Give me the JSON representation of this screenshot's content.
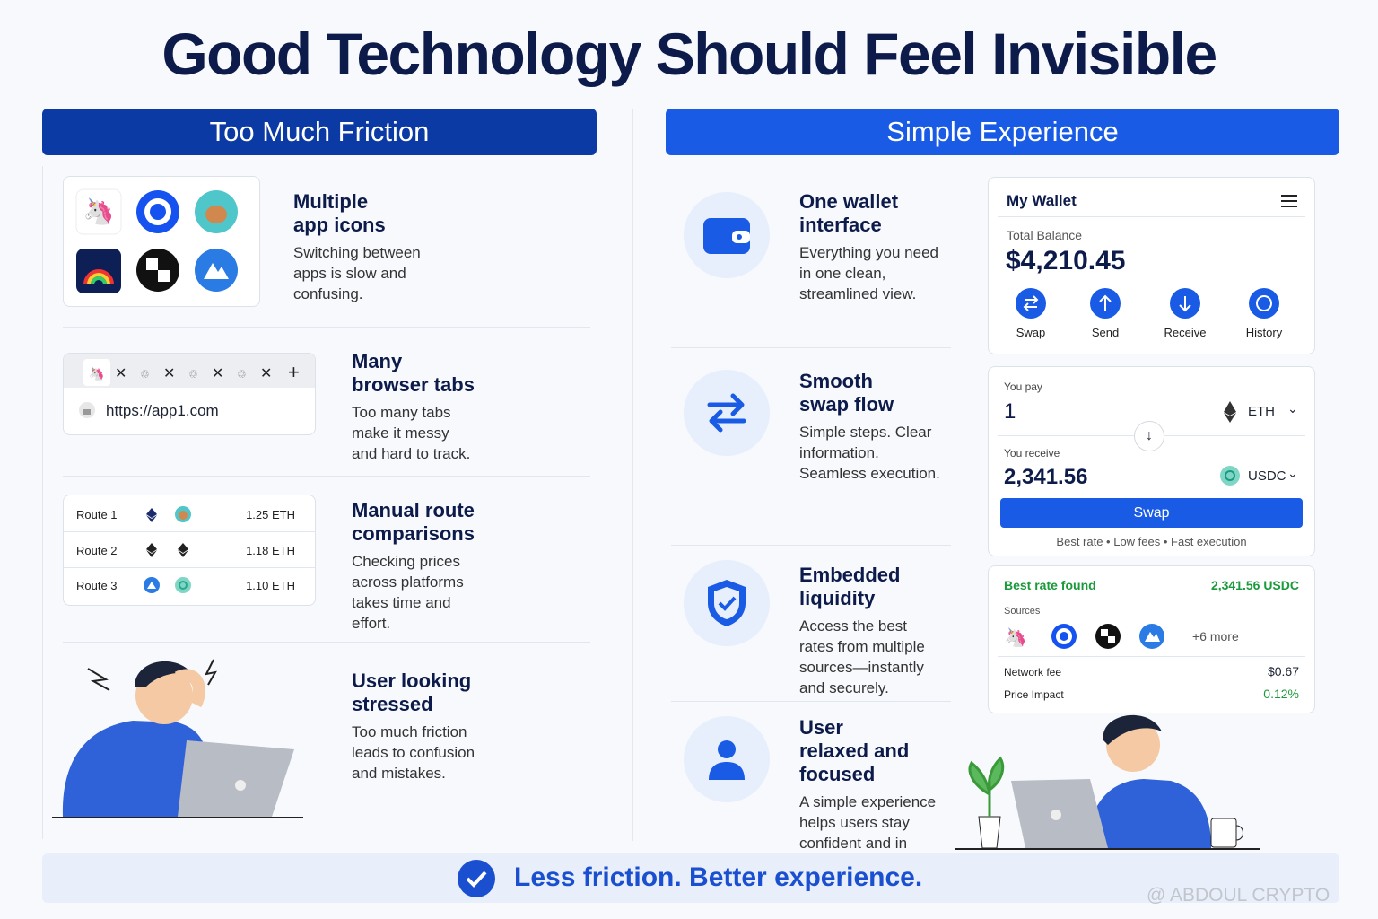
{
  "title": "Good Technology Should Feel Invisible",
  "left": {
    "header": "Too Much Friction",
    "items": [
      {
        "title": "Multiple app icons",
        "text": "Switching between apps is slow and confusing."
      },
      {
        "title": "Many browser tabs",
        "text": "Too many tabs make it messy and hard to track."
      },
      {
        "title": "Manual route comparisons",
        "text": "Checking prices across platforms takes time and effort."
      },
      {
        "title": "User looking stressed",
        "text": "Too much friction leads to confusion and mistakes."
      }
    ]
  },
  "browser": {
    "url": "https://app1.com"
  },
  "routes": [
    {
      "name": "Route 1",
      "amount": "1.25 ETH"
    },
    {
      "name": "Route 2",
      "amount": "1.18 ETH"
    },
    {
      "name": "Route 3",
      "amount": "1.10 ETH"
    }
  ],
  "right": {
    "header": "Simple Experience",
    "items": [
      {
        "title": "One wallet interface",
        "text": "Everything you need in one clean, streamlined view."
      },
      {
        "title": "Smooth swap flow",
        "text": "Simple steps. Clear information. Seamless execution."
      },
      {
        "title": "Embedded liquidity",
        "text": "Access the best rates from multiple sources—instantly and securely."
      },
      {
        "title": "User relaxed and focused",
        "text": "A simple experience helps users stay confident and in control."
      }
    ]
  },
  "wallet": {
    "title": "My Wallet",
    "balance_label": "Total Balance",
    "balance": "$4,210.45",
    "actions": [
      "Swap",
      "Send",
      "Receive",
      "History"
    ]
  },
  "swap": {
    "pay_label": "You pay",
    "pay_amount": "1",
    "pay_token": "ETH",
    "receive_label": "You receive",
    "receive_amount": "2,341.56",
    "receive_token": "USDC",
    "button": "Swap",
    "note": "Best rate • Low fees • Fast execution"
  },
  "rate": {
    "label": "Best rate found",
    "value": "2,341.56 USDC",
    "sources_label": "Sources",
    "more": "+6 more",
    "fee_label": "Network fee",
    "fee": "$0.67",
    "impact_label": "Price Impact",
    "impact": "0.12%"
  },
  "footer": "Less friction. Better experience.",
  "watermark": "@ ABDOUL CRYPTO"
}
